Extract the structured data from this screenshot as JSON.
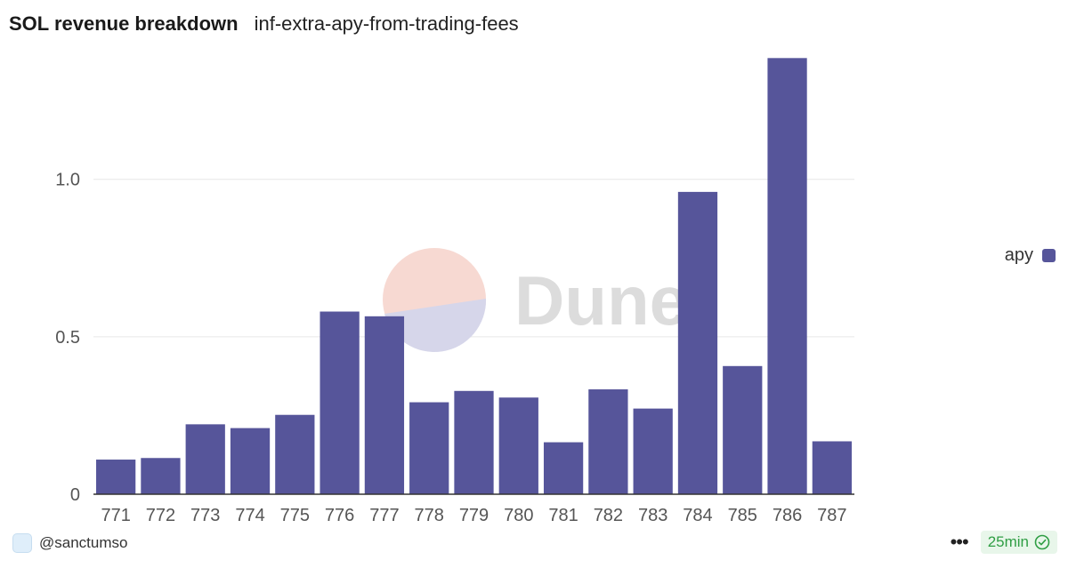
{
  "header": {
    "title": "SOL revenue breakdown",
    "subtitle": "inf-extra-apy-from-trading-fees"
  },
  "watermark": {
    "text": "Dune"
  },
  "legend": {
    "label": "apy",
    "color": "#56559a"
  },
  "footer": {
    "author": "@sanctumso",
    "refresh_label": "25min"
  },
  "colors": {
    "bar": "#56559a",
    "grid": "#e6e6e6",
    "axis": "#333333",
    "tick_text": "#555555",
    "badge_bg": "#e8f6ea",
    "badge_text": "#2f9e44"
  },
  "chart_data": {
    "type": "bar",
    "title": "SOL revenue breakdown",
    "subtitle": "inf-extra-apy-from-trading-fees",
    "categories": [
      "771",
      "772",
      "773",
      "774",
      "775",
      "776",
      "777",
      "778",
      "779",
      "780",
      "781",
      "782",
      "783",
      "784",
      "785",
      "786",
      "787"
    ],
    "series": [
      {
        "name": "apy",
        "values": [
          0.11,
          0.115,
          0.222,
          0.21,
          0.252,
          0.58,
          0.565,
          0.292,
          0.328,
          0.307,
          0.165,
          0.333,
          0.272,
          0.96,
          0.407,
          1.385,
          0.168
        ]
      }
    ],
    "yticks": [
      0,
      0.5,
      1.0
    ],
    "ytick_labels": [
      "0",
      "0.5",
      "1.0"
    ],
    "ylim": [
      0,
      1.4
    ],
    "xlabel": "",
    "ylabel": "",
    "grid": true,
    "legend_position": "right"
  }
}
